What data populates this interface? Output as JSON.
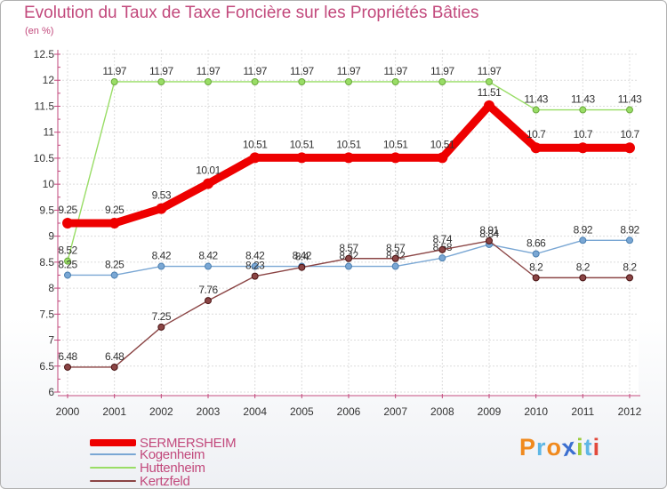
{
  "chart_data": {
    "type": "line",
    "title": "Evolution du Taux de Taxe Foncière sur les Propriétés Bâties",
    "subtitle": "(en %)",
    "categories": [
      "2000",
      "2001",
      "2002",
      "2003",
      "2004",
      "2005",
      "2006",
      "2007",
      "2008",
      "2009",
      "2010",
      "2011",
      "2012"
    ],
    "ylim": [
      6,
      12.5
    ],
    "yticks": [
      6,
      6.5,
      7,
      7.5,
      8,
      8.5,
      9,
      9.5,
      10,
      10.5,
      11,
      11.5,
      12,
      12.5
    ],
    "ytick_labels": [
      "6",
      "6.5",
      "7",
      "7.5",
      "8",
      "8.5",
      "9",
      "9.5",
      "10",
      "10.5",
      "11",
      "11.5",
      "12",
      "12.5"
    ],
    "grid": true,
    "legend": "bottom-left",
    "series": [
      {
        "name": "SERMERSHEIM",
        "color": "#ee0000",
        "values": [
          9.25,
          9.25,
          9.53,
          10.01,
          10.51,
          10.51,
          10.51,
          10.51,
          10.51,
          11.51,
          10.7,
          10.7,
          10.7
        ],
        "labels": [
          "9.25",
          "9.25",
          "9.53",
          "10.01",
          "10.51",
          "10.51",
          "10.51",
          "10.51",
          "10.51",
          "11.51",
          "10.7",
          "10.7",
          "10.7"
        ]
      },
      {
        "name": "Kogenheim",
        "color": "#7aa7d4",
        "values": [
          8.25,
          8.25,
          8.42,
          8.42,
          8.42,
          8.42,
          8.42,
          8.42,
          8.58,
          8.84,
          8.66,
          8.92,
          8.92
        ],
        "labels": [
          "8.25",
          "8.25",
          "8.42",
          "8.42",
          "8.42",
          "8.42",
          "8.42",
          "8.42",
          "8.58",
          "8.84",
          "8.66",
          "8.92",
          "8.92"
        ]
      },
      {
        "name": "Huttenheim",
        "color": "#99dd66",
        "values": [
          8.52,
          11.97,
          11.97,
          11.97,
          11.97,
          11.97,
          11.97,
          11.97,
          11.97,
          11.97,
          11.43,
          11.43,
          11.43
        ],
        "labels": [
          "8.52",
          "11.97",
          "11.97",
          "11.97",
          "11.97",
          "11.97",
          "11.97",
          "11.97",
          "11.97",
          "11.97",
          "11.43",
          "11.43",
          "11.43"
        ]
      },
      {
        "name": "Kertzfeld",
        "color": "#8b4545",
        "values": [
          6.48,
          6.48,
          7.25,
          7.76,
          8.23,
          8.4,
          8.57,
          8.57,
          8.74,
          8.91,
          8.2,
          8.2,
          8.2
        ],
        "labels": [
          "6.48",
          "6.48",
          "7.25",
          "7.76",
          "8.23",
          "8.4",
          "8.57",
          "8.57",
          "8.74",
          "8.91",
          "8.2",
          "8.2",
          "8.2"
        ]
      }
    ]
  },
  "logo": {
    "letters": [
      {
        "ch": "P",
        "color": "#f08a1e"
      },
      {
        "ch": "r",
        "color": "#5fb7e5"
      },
      {
        "ch": "o",
        "color": "#f08a1e"
      },
      {
        "ch": "x",
        "color": "#3b6fd0"
      },
      {
        "ch": "i",
        "color": "#9ccc3c"
      },
      {
        "ch": "t",
        "color": "#5fb7e5"
      },
      {
        "ch": "i",
        "color": "#e24a3c"
      }
    ]
  }
}
